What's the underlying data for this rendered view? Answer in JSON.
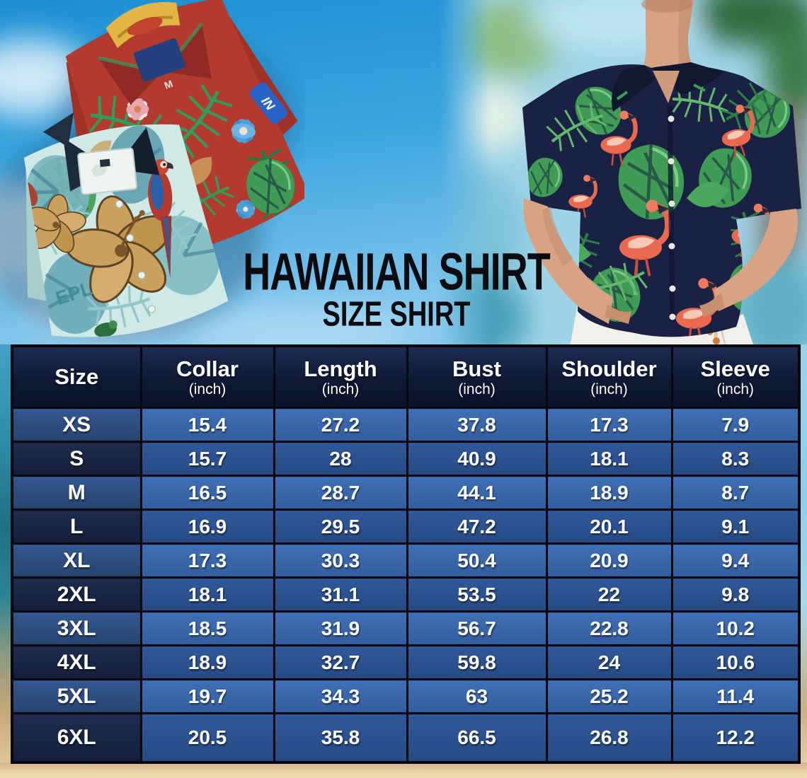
{
  "header": {
    "title": "HAWAIIAN SHIRT",
    "subtitle": "SIZE SHIRT"
  },
  "photos": {
    "left": {
      "description": "Two folded Hawaiian shirts: red tropical-print shirt and teal hibiscus-print shirt on blue sky",
      "red_shirt_size_tag": "M",
      "red_shirt_logo_text": "IN",
      "teal_shirt_print_text": "EPL"
    },
    "right": {
      "description": "Man wearing navy flamingo and monstera-leaf Hawaiian shirt with white pants on blurred beach"
    }
  },
  "table": {
    "header": [
      {
        "label": "Size",
        "unit": ""
      },
      {
        "label": "Collar",
        "unit": "(inch)"
      },
      {
        "label": "Length",
        "unit": "(inch)"
      },
      {
        "label": "Bust",
        "unit": "(inch)"
      },
      {
        "label": "Shoulder",
        "unit": "(inch)"
      },
      {
        "label": "Sleeve",
        "unit": "(inch)"
      }
    ],
    "rows": [
      {
        "size": "XS",
        "values": [
          "15.4",
          "27.2",
          "37.8",
          "17.3",
          "7.9"
        ]
      },
      {
        "size": "S",
        "values": [
          "15.7",
          "28",
          "40.9",
          "18.1",
          "8.3"
        ]
      },
      {
        "size": "M",
        "values": [
          "16.5",
          "28.7",
          "44.1",
          "18.9",
          "8.7"
        ]
      },
      {
        "size": "L",
        "values": [
          "16.9",
          "29.5",
          "47.2",
          "20.1",
          "9.1"
        ]
      },
      {
        "size": "XL",
        "values": [
          "17.3",
          "30.3",
          "50.4",
          "20.9",
          "9.4"
        ]
      },
      {
        "size": "2XL",
        "values": [
          "18.1",
          "31.1",
          "53.5",
          "22",
          "9.8"
        ]
      },
      {
        "size": "3XL",
        "values": [
          "18.5",
          "31.9",
          "56.7",
          "22.8",
          "10.2"
        ]
      },
      {
        "size": "4XL",
        "values": [
          "18.9",
          "32.7",
          "59.8",
          "24",
          "10.6"
        ]
      },
      {
        "size": "5XL",
        "values": [
          "19.7",
          "34.3",
          "63",
          "25.2",
          "11.4"
        ]
      },
      {
        "size": "6XL",
        "values": [
          "20.5",
          "35.8",
          "66.5",
          "26.8",
          "12.2"
        ]
      }
    ]
  },
  "colors": {
    "table_border": "#05080f",
    "header_bg": "#0e1934",
    "row_value_light": "#3f6fb4",
    "row_value_dark": "#30589a",
    "size_cell_light": "#35588f",
    "size_cell_dark": "#1d2c4e",
    "table_text": "#ffffff",
    "title_text": "#0b0b10",
    "sky_blue": "#2f9ad8",
    "sand": "#e9d2a6",
    "red_shirt": "#b23a2f",
    "teal_shirt": "#cfe9e7",
    "navy_shirt": "#1a2142",
    "flamingo": "#e96a50",
    "leaf_green": "#3f9b55"
  }
}
